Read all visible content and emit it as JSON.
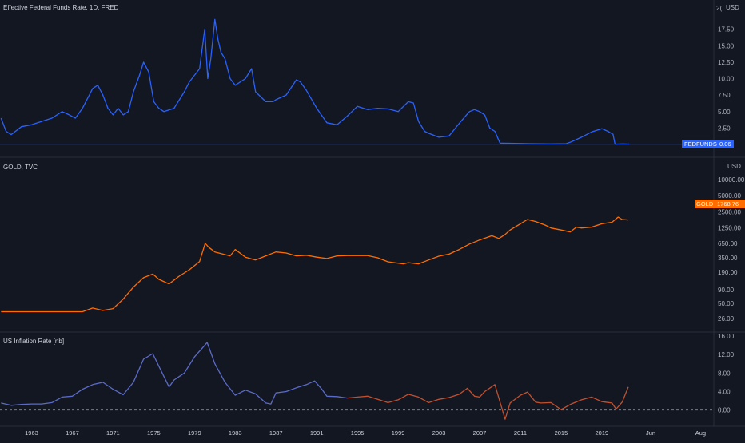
{
  "colors": {
    "background": "#131722",
    "fedfunds_line": "#2962ff",
    "gold_line": "#ff6d00",
    "inflation_line": "#5b6bc9",
    "inflation_line_alt": "#c2502e",
    "zero_line": "#787b86",
    "text": "#b2b5be"
  },
  "panes": {
    "fedfunds": {
      "title": "Effective Federal Funds Rate, 1D, FRED",
      "axis_unit": "USD",
      "top_partial_tick": "2(",
      "badge": {
        "label": "FEDFUNDS",
        "value": "0.06",
        "color": "#2962ff"
      }
    },
    "gold": {
      "title": "GOLD, TVC",
      "axis_unit": "USD",
      "badge": {
        "label": "GOLD",
        "value": "1768.76",
        "color": "#ff6d00"
      }
    },
    "inflation": {
      "title": "US Inflation Rate [nb]"
    }
  },
  "chart_data": [
    {
      "type": "line",
      "pane": "fedfunds",
      "title": "Effective Federal Funds Rate, 1D, FRED",
      "series": [
        {
          "name": "FEDFUNDS",
          "x": [
            1960.0,
            1960.5,
            1961.0,
            1962.0,
            1963.0,
            1964.0,
            1965.0,
            1966.0,
            1966.7,
            1967.3,
            1968.0,
            1969.0,
            1969.5,
            1970.0,
            1970.5,
            1971.0,
            1971.5,
            1972.0,
            1972.5,
            1973.0,
            1973.6,
            1974.0,
            1974.5,
            1975.0,
            1975.5,
            1976.0,
            1977.0,
            1978.0,
            1978.5,
            1979.0,
            1979.5,
            1980.0,
            1980.3,
            1980.6,
            1981.0,
            1981.3,
            1981.6,
            1982.0,
            1982.5,
            1983.0,
            1984.0,
            1984.6,
            1985.0,
            1986.0,
            1986.7,
            1987.0,
            1988.0,
            1989.0,
            1989.4,
            1990.0,
            1991.0,
            1992.0,
            1993.0,
            1994.0,
            1995.0,
            1996.0,
            1997.0,
            1998.0,
            1999.0,
            2000.0,
            2000.5,
            2001.0,
            2001.6,
            2002.0,
            2003.0,
            2004.0,
            2005.0,
            2006.0,
            2006.5,
            2007.0,
            2007.5,
            2008.0,
            2008.5,
            2009.0,
            2010.0,
            2012.0,
            2014.0,
            2015.5,
            2016.0,
            2017.0,
            2018.0,
            2019.0,
            2019.6,
            2020.1,
            2020.3,
            2021.0,
            2021.7
          ],
          "values": [
            4.0,
            2.0,
            1.5,
            2.7,
            3.0,
            3.5,
            4.0,
            5.0,
            4.5,
            4.0,
            5.5,
            8.5,
            9.0,
            7.5,
            5.5,
            4.5,
            5.5,
            4.5,
            5.0,
            8.0,
            10.5,
            12.5,
            11.0,
            6.5,
            5.5,
            5.0,
            5.5,
            8.0,
            9.5,
            10.5,
            11.5,
            17.5,
            10.0,
            13.0,
            19.0,
            16.0,
            14.0,
            13.0,
            10.0,
            9.0,
            10.0,
            11.5,
            8.0,
            6.5,
            6.5,
            6.8,
            7.5,
            9.8,
            9.5,
            8.2,
            5.5,
            3.3,
            3.0,
            4.3,
            5.8,
            5.3,
            5.5,
            5.4,
            5.0,
            6.5,
            6.3,
            3.5,
            2.0,
            1.7,
            1.1,
            1.3,
            3.2,
            5.0,
            5.3,
            5.0,
            4.5,
            2.5,
            2.0,
            0.2,
            0.18,
            0.12,
            0.09,
            0.12,
            0.4,
            1.1,
            1.9,
            2.4,
            2.0,
            1.55,
            0.05,
            0.08,
            0.06
          ]
        }
      ],
      "ylim": [
        0,
        20
      ],
      "y_ticks": [
        "2.50",
        "5.00",
        "7.50",
        "10.00",
        "12.50",
        "15.00",
        "17.50"
      ]
    },
    {
      "type": "line",
      "pane": "gold",
      "title": "GOLD, TVC",
      "yscale": "log",
      "series": [
        {
          "name": "GOLD",
          "x": [
            1960.0,
            1965.0,
            1968.0,
            1969.0,
            1970.0,
            1971.0,
            1972.0,
            1973.0,
            1974.0,
            1974.9,
            1975.5,
            1976.5,
            1977.5,
            1978.5,
            1979.5,
            1980.05,
            1980.4,
            1981.0,
            1982.5,
            1983.0,
            1984.0,
            1985.0,
            1986.0,
            1987.0,
            1988.0,
            1989.0,
            1990.0,
            1991.0,
            1992.0,
            1993.0,
            1994.0,
            1995.0,
            1996.0,
            1997.0,
            1998.0,
            1999.5,
            2000.0,
            2001.0,
            2002.0,
            2003.0,
            2004.0,
            2005.0,
            2006.0,
            2007.0,
            2008.2,
            2008.9,
            2009.5,
            2010.0,
            2011.0,
            2011.7,
            2012.5,
            2013.5,
            2014.0,
            2015.0,
            2015.9,
            2016.5,
            2017.0,
            2018.0,
            2019.0,
            2020.0,
            2020.6,
            2021.0,
            2021.6
          ],
          "values": [
            35,
            35,
            35,
            41,
            37,
            40,
            60,
            100,
            150,
            175,
            140,
            115,
            160,
            210,
            300,
            650,
            550,
            450,
            380,
            500,
            360,
            320,
            380,
            450,
            430,
            380,
            390,
            360,
            340,
            380,
            385,
            385,
            385,
            350,
            295,
            270,
            285,
            270,
            320,
            375,
            410,
            500,
            630,
            750,
            900,
            800,
            950,
            1150,
            1500,
            1800,
            1650,
            1400,
            1250,
            1150,
            1060,
            1300,
            1250,
            1300,
            1500,
            1600,
            2000,
            1800,
            1768.76
          ]
        }
      ],
      "y_ticks": [
        "26.00",
        "50.00",
        "90.00",
        "190.00",
        "350.00",
        "650.00",
        "1250.00",
        "2500.00",
        "5000.00",
        "10000.00"
      ]
    },
    {
      "type": "line",
      "pane": "inflation",
      "title": "US Inflation Rate [nb]",
      "series": [
        {
          "name": "US Inflation Rate",
          "x": [
            1960.0,
            1961.0,
            1962.0,
            1963.0,
            1964.0,
            1965.0,
            1966.0,
            1967.0,
            1968.0,
            1969.0,
            1970.0,
            1971.0,
            1972.0,
            1973.0,
            1974.0,
            1974.9,
            1975.5,
            1976.5,
            1977.0,
            1978.0,
            1979.0,
            1980.25,
            1981.0,
            1982.0,
            1983.0,
            1984.0,
            1985.0,
            1986.0,
            1986.5,
            1987.0,
            1988.0,
            1989.0,
            1990.0,
            1990.8,
            1991.5,
            1992.0,
            1993.0,
            1994.0,
            1995.0,
            1996.0,
            1997.0,
            1998.0,
            1999.0,
            2000.0,
            2001.0,
            2002.0,
            2003.0,
            2004.0,
            2005.0,
            2005.8,
            2006.5,
            2007.0,
            2007.5,
            2008.5,
            2009.5,
            2010.0,
            2011.0,
            2011.7,
            2012.5,
            2013.0,
            2014.0,
            2015.0,
            2016.0,
            2017.0,
            2018.0,
            2019.0,
            2020.0,
            2020.4,
            2021.0,
            2021.6
          ],
          "values": [
            1.5,
            1.0,
            1.2,
            1.3,
            1.3,
            1.6,
            2.8,
            3.0,
            4.5,
            5.5,
            6.0,
            4.5,
            3.3,
            6.0,
            11.0,
            12.2,
            9.5,
            5.0,
            6.5,
            8.0,
            11.5,
            14.6,
            10.0,
            6.0,
            3.2,
            4.3,
            3.5,
            1.5,
            1.3,
            3.7,
            4.0,
            4.8,
            5.5,
            6.3,
            4.5,
            3.0,
            2.9,
            2.6,
            2.8,
            3.0,
            2.3,
            1.6,
            2.2,
            3.4,
            2.8,
            1.6,
            2.3,
            2.7,
            3.4,
            4.7,
            3.0,
            2.8,
            4.0,
            5.5,
            -2.0,
            1.5,
            3.2,
            3.9,
            1.7,
            1.5,
            1.6,
            0.1,
            1.3,
            2.2,
            2.8,
            1.8,
            1.5,
            0.2,
            1.7,
            5.0
          ]
        }
      ],
      "ylim": [
        -3,
        16
      ],
      "y_ticks": [
        "0.00",
        "4.00",
        "8.00",
        "12.00",
        "16.00"
      ]
    }
  ],
  "time_axis": {
    "labels": [
      "1963",
      "1967",
      "1971",
      "1975",
      "1979",
      "1983",
      "1987",
      "1991",
      "1995",
      "1999",
      "2003",
      "2007",
      "2011",
      "2015",
      "2019",
      "Jun",
      "Aug"
    ],
    "years": [
      1963,
      1967,
      1971,
      1975,
      1979,
      1983,
      1987,
      1991,
      1995,
      1999,
      2003,
      2007,
      2011,
      2015,
      2019,
      2023.8,
      2028.7
    ],
    "range": [
      1959.9,
      2030.0
    ]
  }
}
